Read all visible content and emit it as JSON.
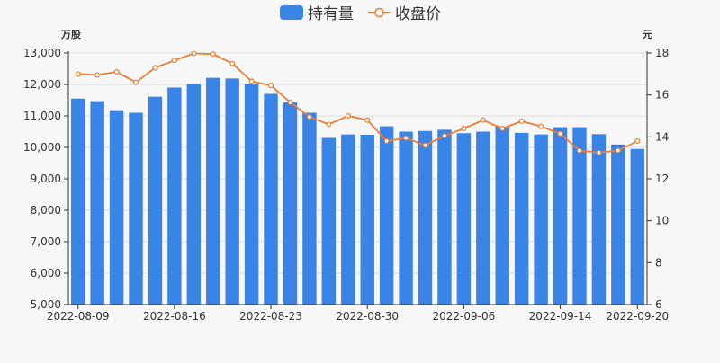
{
  "legend": {
    "bar_label": "持有量",
    "line_label": "收盘价"
  },
  "colors": {
    "bar": "#3a84e6",
    "line": "#ee7c31",
    "axis": "#333333",
    "grid": "#dddddd",
    "background": "#f7f7f7"
  },
  "chart_data": {
    "type": "bar",
    "left_unit": "万股",
    "right_unit": "元",
    "left_ticks": [
      "5,000",
      "6,000",
      "7,000",
      "8,000",
      "9,000",
      "10,000",
      "11,000",
      "12,000",
      "13,000"
    ],
    "right_ticks": [
      "6",
      "8",
      "10",
      "12",
      "14",
      "16",
      "18"
    ],
    "ylim_left": [
      5000,
      13000
    ],
    "ylim_right": [
      6,
      18
    ],
    "x_tick_labels": [
      {
        "index": 0,
        "label": "2022-08-09"
      },
      {
        "index": 5,
        "label": "2022-08-16"
      },
      {
        "index": 10,
        "label": "2022-08-23"
      },
      {
        "index": 15,
        "label": "2022-08-30"
      },
      {
        "index": 20,
        "label": "2022-09-06"
      },
      {
        "index": 25,
        "label": "2022-09-14"
      },
      {
        "index": 29,
        "label": "2022-09-20"
      }
    ],
    "series": [
      {
        "name": "持有量",
        "type": "bar",
        "axis": "left",
        "values": [
          11550,
          11470,
          11180,
          11100,
          11610,
          11900,
          12030,
          12210,
          12190,
          12010,
          11700,
          11430,
          11100,
          10300,
          10410,
          10400,
          10670,
          10500,
          10520,
          10560,
          10450,
          10500,
          10660,
          10460,
          10410,
          10640,
          10640,
          10420,
          10090,
          9950
        ]
      },
      {
        "name": "收盘价",
        "type": "line",
        "axis": "right",
        "values": [
          17.0,
          16.95,
          17.1,
          16.6,
          17.3,
          17.65,
          17.98,
          17.95,
          17.5,
          16.65,
          16.45,
          15.65,
          14.95,
          14.6,
          15.0,
          14.8,
          13.8,
          13.95,
          13.6,
          14.05,
          14.4,
          14.8,
          14.4,
          14.75,
          14.5,
          14.15,
          13.35,
          13.25,
          13.35,
          13.8
        ]
      }
    ]
  }
}
